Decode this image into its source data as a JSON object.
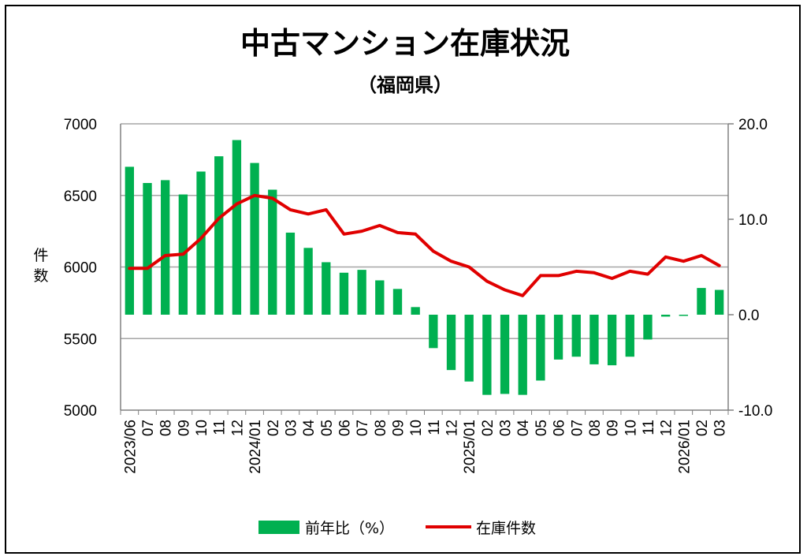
{
  "chart_data": {
    "type": "bar+line",
    "title": "中古マンション在庫状況",
    "subtitle": "（福岡県）",
    "ylabel_left": "件数",
    "left_axis": {
      "min": 5000,
      "max": 7000,
      "ticks": [
        "7000",
        "6500",
        "6000",
        "5500",
        "5000"
      ]
    },
    "right_axis": {
      "min": -10,
      "max": 20,
      "ticks": [
        "20.0",
        "10.0",
        "0.0",
        "-10.0"
      ]
    },
    "categories": [
      "2023/06",
      "07",
      "08",
      "09",
      "10",
      "11",
      "12",
      "2024/01",
      "02",
      "03",
      "04",
      "05",
      "06",
      "07",
      "08",
      "09",
      "10",
      "11",
      "12",
      "2025/01",
      "02",
      "03",
      "04",
      "05",
      "06",
      "07",
      "08",
      "09",
      "10",
      "11",
      "12",
      "2026/01",
      "02",
      "03"
    ],
    "series": [
      {
        "name": "前年比（%）",
        "type": "bar",
        "axis": "right",
        "color": "#00b050",
        "values": [
          15.5,
          13.8,
          14.1,
          12.6,
          15.0,
          16.6,
          18.3,
          15.9,
          13.1,
          8.6,
          7.0,
          5.5,
          4.4,
          4.7,
          3.6,
          2.7,
          0.8,
          -3.5,
          -5.8,
          -7.0,
          -8.4,
          -8.3,
          -8.4,
          -6.9,
          -4.7,
          -4.4,
          -5.2,
          -5.3,
          -4.4,
          -2.6,
          -0.2,
          -0.1,
          2.8,
          2.6
        ]
      },
      {
        "name": "在庫件数",
        "type": "line",
        "axis": "left",
        "color": "#e00000",
        "values": [
          5990,
          5990,
          6080,
          6090,
          6200,
          6340,
          6440,
          6500,
          6480,
          6400,
          6370,
          6400,
          6230,
          6250,
          6290,
          6240,
          6230,
          6110,
          6040,
          6000,
          5900,
          5840,
          5800,
          5940,
          5940,
          5970,
          5960,
          5920,
          5970,
          5950,
          6070,
          6040,
          6080,
          6010
        ]
      }
    ],
    "legend": {
      "placement": "bottom",
      "items": [
        "前年比（%）",
        "在庫件数"
      ]
    }
  }
}
